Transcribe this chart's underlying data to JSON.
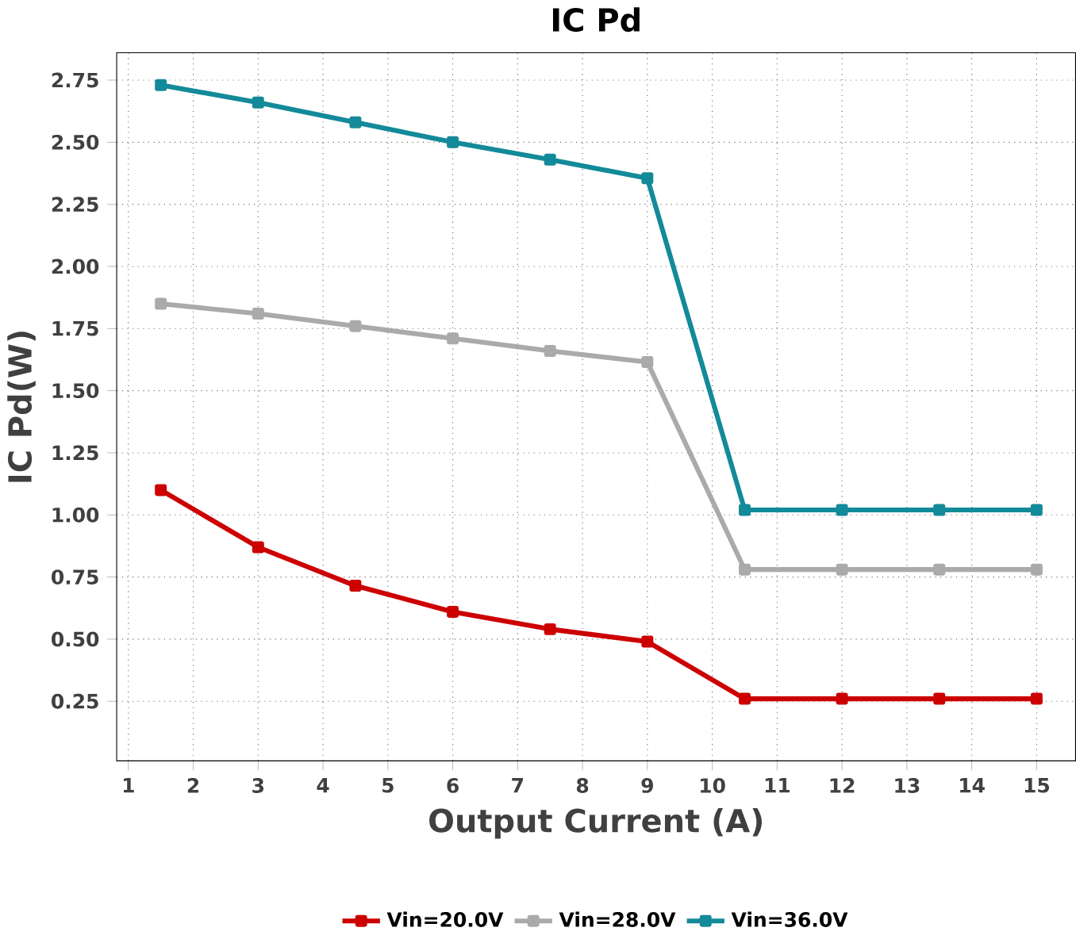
{
  "chart_data": {
    "type": "line",
    "title": "IC Pd",
    "xlabel": "Output Current (A)",
    "ylabel": "IC Pd(W)",
    "x": [
      1.5,
      3,
      4.5,
      6,
      7.5,
      9,
      10.5,
      12,
      13.5,
      15
    ],
    "series": [
      {
        "name": "Vin=20.0V",
        "color": "#cc0000",
        "values": [
          1.1,
          0.87,
          0.715,
          0.61,
          0.54,
          0.49,
          0.26,
          0.26,
          0.26,
          0.26
        ]
      },
      {
        "name": "Vin=28.0V",
        "color": "#aaaaaa",
        "values": [
          1.85,
          1.81,
          1.76,
          1.71,
          1.66,
          1.615,
          0.78,
          0.78,
          0.78,
          0.78
        ]
      },
      {
        "name": "Vin=36.0V",
        "color": "#138a99",
        "values": [
          2.73,
          2.66,
          2.58,
          2.5,
          2.43,
          2.355,
          1.02,
          1.02,
          1.02,
          1.02
        ]
      }
    ],
    "xlim": [
      0.82,
      15.6
    ],
    "xticks": [
      1,
      2,
      3,
      4,
      5,
      6,
      7,
      8,
      9,
      10,
      11,
      12,
      13,
      14,
      15
    ],
    "ylim": [
      0.01,
      2.86
    ],
    "yticks": [
      {
        "value": 0.25,
        "label": "0.25"
      },
      {
        "value": 0.5,
        "label": "0.50"
      },
      {
        "value": 0.75,
        "label": "0.75"
      },
      {
        "value": 1.0,
        "label": "1.00"
      },
      {
        "value": 1.25,
        "label": "1.25"
      },
      {
        "value": 1.5,
        "label": "1.50"
      },
      {
        "value": 1.75,
        "label": "1.75"
      },
      {
        "value": 2.0,
        "label": "2.00"
      },
      {
        "value": 2.25,
        "label": "2.25"
      },
      {
        "value": 2.5,
        "label": "2.50"
      },
      {
        "value": 2.75,
        "label": "2.75"
      }
    ],
    "grid": true,
    "legend": "bottom",
    "marker": "square",
    "line_style": "solid"
  }
}
